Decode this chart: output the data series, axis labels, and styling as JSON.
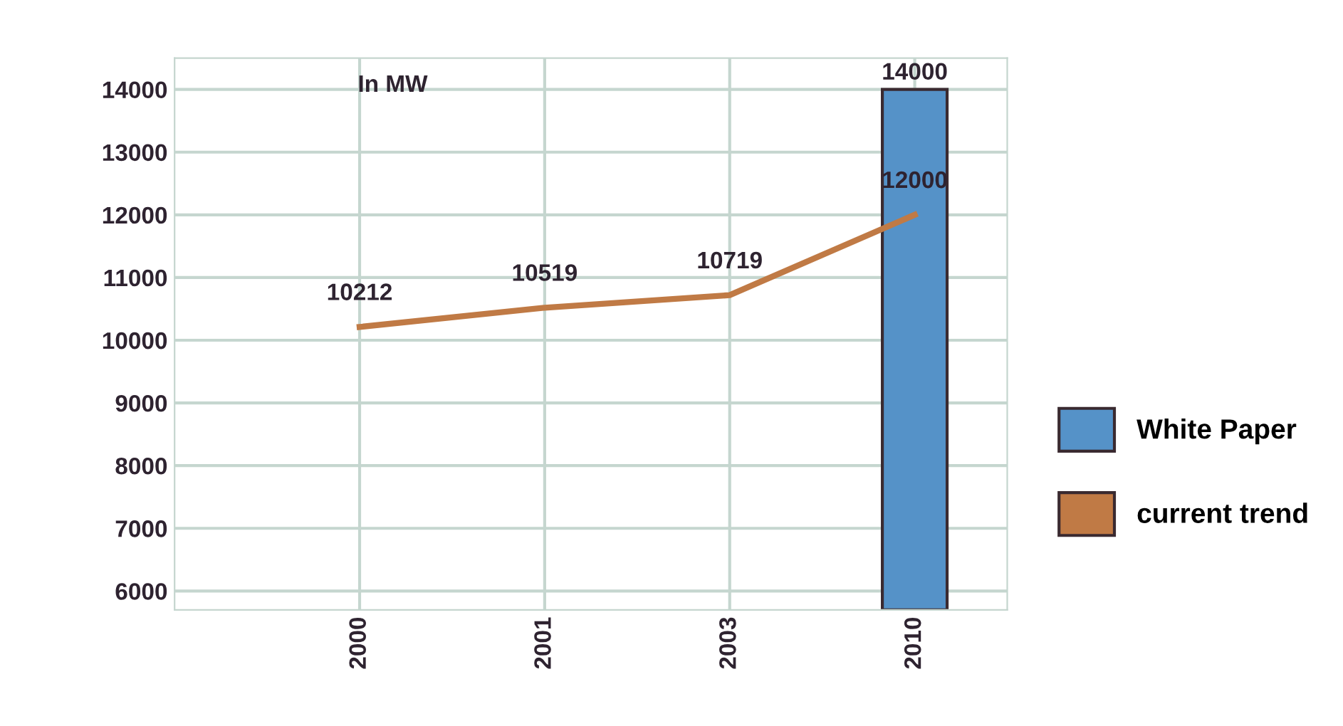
{
  "chart_data": {
    "type": "line",
    "categories": [
      "2000",
      "2001",
      "2003",
      "2010"
    ],
    "series": [
      {
        "name": "White Paper",
        "type": "bar",
        "color": "#5592c8",
        "values": [
          null,
          null,
          null,
          14000
        ],
        "value_labels": [
          null,
          null,
          null,
          "14000"
        ]
      },
      {
        "name": "current trend",
        "color": "#c07a45",
        "values": [
          10212,
          10519,
          10719,
          12000
        ],
        "value_labels": [
          "10212",
          "10519",
          "10719",
          "12000"
        ]
      }
    ],
    "annotations": [
      "In MW"
    ],
    "ylim": [
      5700,
      14500
    ],
    "yticks": [
      6000,
      7000,
      8000,
      9000,
      10000,
      11000,
      12000,
      13000,
      14000
    ],
    "grid": true,
    "legend": "right",
    "marker": "none"
  }
}
